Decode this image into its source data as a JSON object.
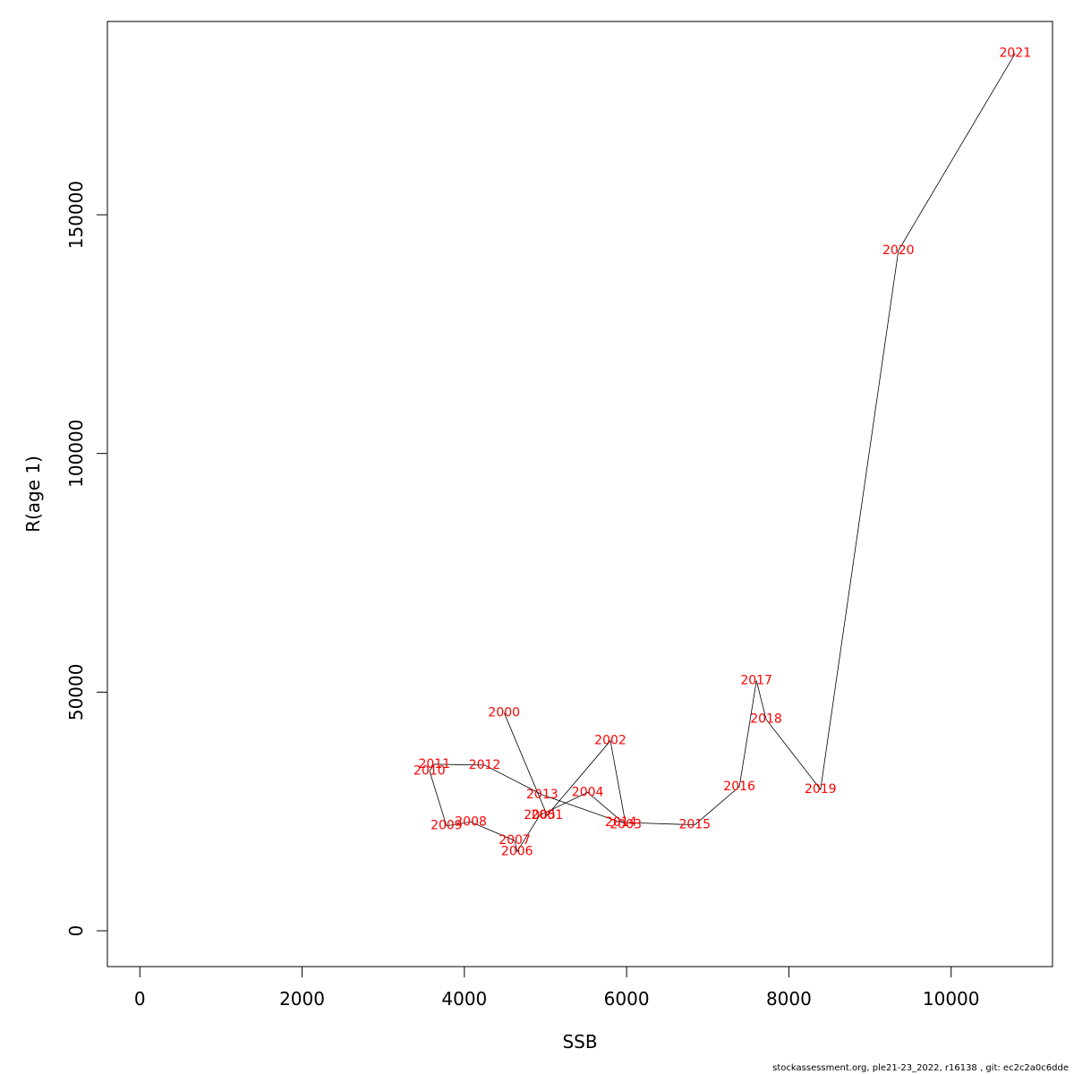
{
  "chart_data": {
    "type": "line",
    "title": "",
    "xlabel": "SSB",
    "ylabel": "R(age 1)",
    "xlim": [
      -400,
      11250
    ],
    "ylim": [
      -7500,
      190500
    ],
    "xticks": [
      0,
      2000,
      4000,
      6000,
      8000,
      10000
    ],
    "xtick_labels": [
      "0",
      "2000",
      "4000",
      "6000",
      "8000",
      "10000"
    ],
    "yticks": [
      0,
      50000,
      100000,
      150000
    ],
    "ytick_labels": [
      "0",
      "50000",
      "100000",
      "150000"
    ],
    "grid": false,
    "label_color": "#ff0000",
    "line_color": "#000000",
    "points": [
      {
        "year": "2000",
        "x": 4490,
        "y": 45700
      },
      {
        "year": "2001",
        "x": 5020,
        "y": 24200
      },
      {
        "year": "2002",
        "x": 5800,
        "y": 39800
      },
      {
        "year": "2003",
        "x": 5990,
        "y": 22200
      },
      {
        "year": "2004",
        "x": 5520,
        "y": 29000
      },
      {
        "year": "2005",
        "x": 4930,
        "y": 24200
      },
      {
        "year": "2006",
        "x": 4650,
        "y": 16600
      },
      {
        "year": "2007",
        "x": 4620,
        "y": 18900
      },
      {
        "year": "2008",
        "x": 4080,
        "y": 22800
      },
      {
        "year": "2009",
        "x": 3780,
        "y": 22000
      },
      {
        "year": "2010",
        "x": 3570,
        "y": 33500
      },
      {
        "year": "2011",
        "x": 3630,
        "y": 34900
      },
      {
        "year": "2012",
        "x": 4250,
        "y": 34700
      },
      {
        "year": "2013",
        "x": 4960,
        "y": 28500
      },
      {
        "year": "2014",
        "x": 5930,
        "y": 22700
      },
      {
        "year": "2015",
        "x": 6840,
        "y": 22200
      },
      {
        "year": "2016",
        "x": 7390,
        "y": 30200
      },
      {
        "year": "2017",
        "x": 7600,
        "y": 52400
      },
      {
        "year": "2018",
        "x": 7720,
        "y": 44300
      },
      {
        "year": "2019",
        "x": 8390,
        "y": 29600
      },
      {
        "year": "2020",
        "x": 9350,
        "y": 142500
      },
      {
        "year": "2021",
        "x": 10790,
        "y": 183800
      }
    ]
  },
  "footer": {
    "text": "stockassessment.org, ple21-23_2022, r16138 , git: ec2c2a0c6dde"
  }
}
